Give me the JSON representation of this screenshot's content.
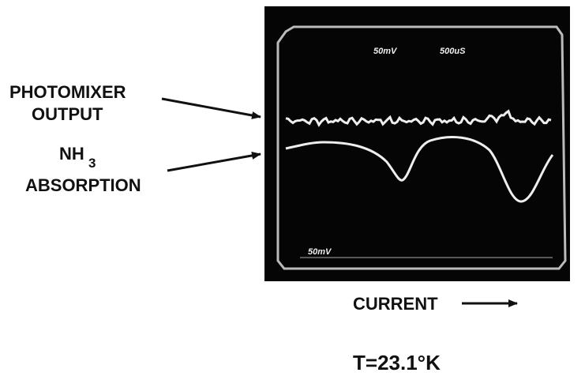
{
  "labels": {
    "photomixer_output": [
      "PHOTOMIXER",
      "OUTPUT"
    ],
    "nh3_absorption": {
      "formula": "NH",
      "subscript": "3",
      "line2": "ABSORPTION"
    }
  },
  "screen": {
    "top_labels": [
      "50mV",
      "500uS"
    ],
    "bottom_label": "50mV"
  },
  "x_label": "CURRENT",
  "temperature": "T=23.1°K"
}
